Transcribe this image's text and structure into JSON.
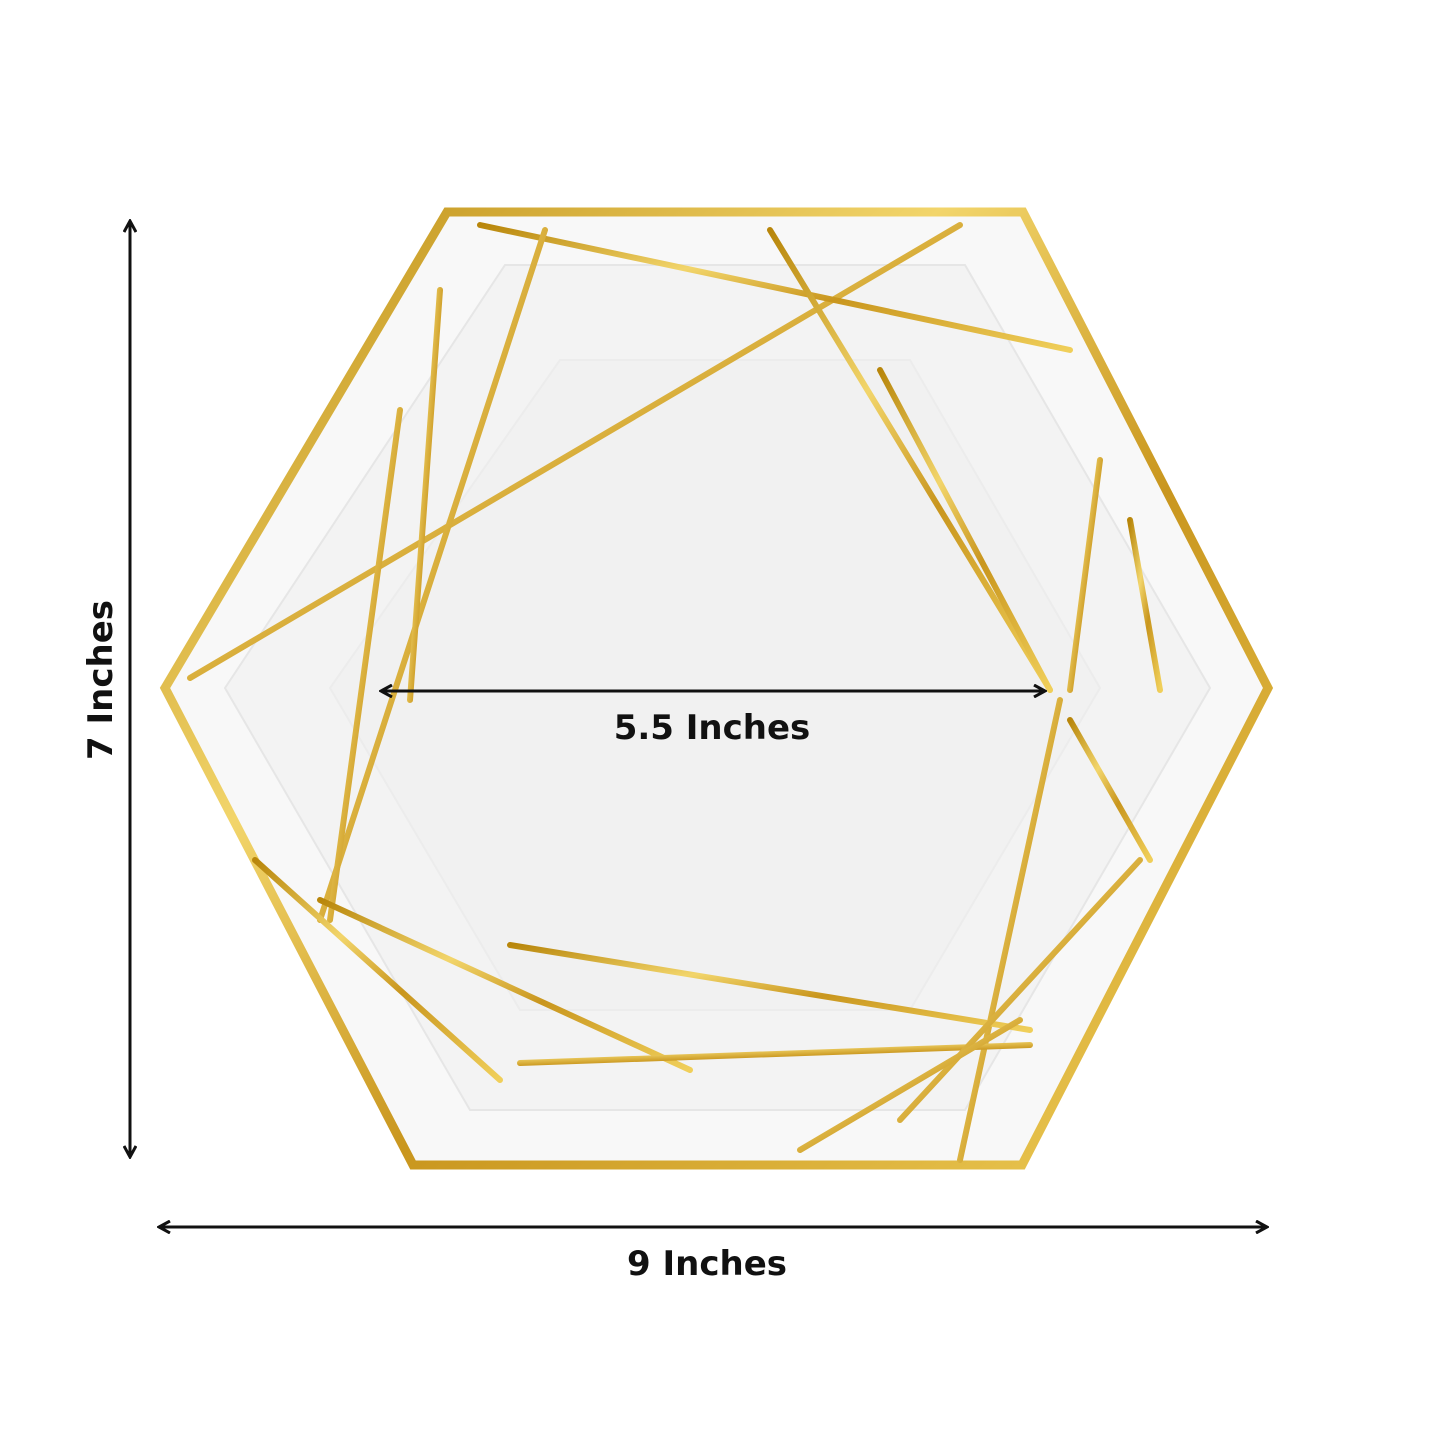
{
  "product": {
    "description_shown": "hexagon paper plate with white center and gold foil geometric lines",
    "colors": {
      "gold": "#d4a62a",
      "gold_light": "#f2d56b",
      "plate": "#f7f7f7",
      "arrow": "#111111"
    }
  },
  "dimensions": {
    "height_label": "7 Inches",
    "inner_width_label": "5.5 Inches",
    "outer_width_label": "9 Inches"
  }
}
